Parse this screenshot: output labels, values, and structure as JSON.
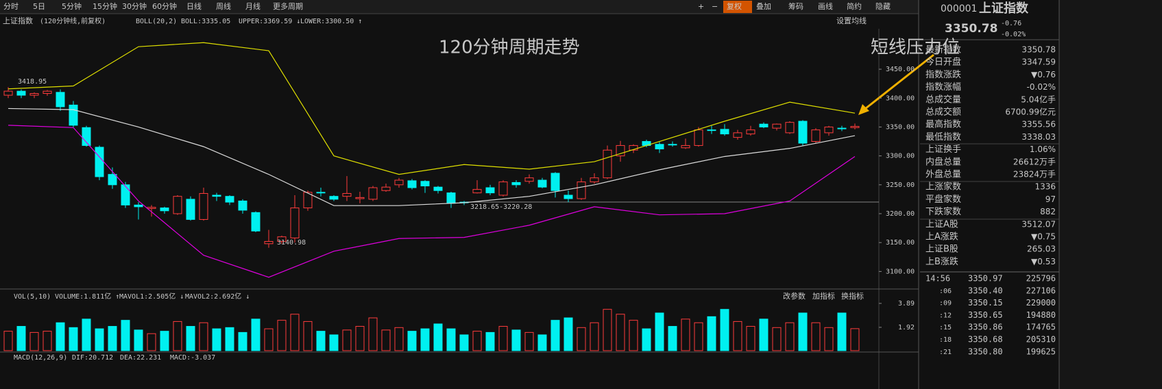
{
  "toolbar": {
    "periods": [
      "分时",
      "5日",
      "5分钟",
      "15分钟",
      "30分钟",
      "60分钟",
      "日线",
      "周线",
      "月线",
      "更多周期"
    ],
    "tools": [
      "+",
      "−",
      "复权",
      "叠加",
      "筹码",
      "画线",
      "简约",
      "隐藏"
    ]
  },
  "chart": {
    "name": "上证指数",
    "period": "(120分钟线,前复权)",
    "indicator": "BOLL(20,2)",
    "boll": "BOLL:3335.05",
    "upper": "UPPER:3369.59 ↓",
    "lower": "LOWER:3300.50 ↑",
    "settings": "设置均线",
    "title": "120分钟周期走势",
    "note": "短线压力位",
    "high_label": "3418.95",
    "low_label": "3140.98",
    "range_label": "3218.65-3220.28",
    "up_color": "#ff3c3c",
    "down_color": "#00f0f0",
    "ylim": [
      3072,
      3520
    ],
    "yticks": [
      {
        "value": 3450,
        "label": "3450.00"
      },
      {
        "value": 3400,
        "label": "3400.00"
      },
      {
        "value": 3350,
        "label": "3350.00"
      },
      {
        "value": 3300,
        "label": "3300.00"
      },
      {
        "value": 3250,
        "label": "3250.00"
      },
      {
        "value": 3200,
        "label": "3200.00"
      },
      {
        "value": 3150,
        "label": "3150.00"
      },
      {
        "value": 3100,
        "label": "3100.00"
      }
    ],
    "candles": [
      [
        3405,
        3419,
        3400,
        3412
      ],
      [
        3412,
        3415,
        3400,
        3405
      ],
      [
        3405,
        3410,
        3400,
        3408
      ],
      [
        3408,
        3414,
        3404,
        3412
      ],
      [
        3410,
        3415,
        3378,
        3385
      ],
      [
        3388,
        3395,
        3350,
        3353
      ],
      [
        3349,
        3352,
        3316,
        3318
      ],
      [
        3315,
        3318,
        3258,
        3264
      ],
      [
        3268,
        3280,
        3243,
        3250
      ],
      [
        3250,
        3255,
        3210,
        3215
      ],
      [
        3215,
        3220,
        3190,
        3212
      ],
      [
        3209,
        3215,
        3195,
        3211
      ],
      [
        3210,
        3212,
        3200,
        3205
      ],
      [
        3200,
        3232,
        3198,
        3230
      ],
      [
        3225,
        3230,
        3188,
        3190
      ],
      [
        3190,
        3245,
        3188,
        3235
      ],
      [
        3232,
        3236,
        3222,
        3230
      ],
      [
        3230,
        3232,
        3215,
        3220
      ],
      [
        3222,
        3225,
        3200,
        3206
      ],
      [
        3202,
        3204,
        3168,
        3170
      ],
      [
        3148,
        3172,
        3141,
        3152
      ],
      [
        3152,
        3162,
        3148,
        3160
      ],
      [
        3158,
        3232,
        3150,
        3210
      ],
      [
        3210,
        3240,
        3205,
        3237
      ],
      [
        3237,
        3245,
        3230,
        3236
      ],
      [
        3230,
        3232,
        3222,
        3225
      ],
      [
        3230,
        3265,
        3222,
        3235
      ],
      [
        3226,
        3238,
        3218,
        3228
      ],
      [
        3225,
        3248,
        3222,
        3245
      ],
      [
        3240,
        3252,
        3238,
        3246
      ],
      [
        3250,
        3262,
        3245,
        3258
      ],
      [
        3257,
        3260,
        3242,
        3245
      ],
      [
        3256,
        3258,
        3236,
        3248
      ],
      [
        3246,
        3248,
        3235,
        3240
      ],
      [
        3236,
        3238,
        3210,
        3218
      ],
      [
        3220,
        3222,
        3215,
        3219
      ],
      [
        3236,
        3258,
        3235,
        3242
      ],
      [
        3245,
        3250,
        3232,
        3236
      ],
      [
        3232,
        3258,
        3230,
        3255
      ],
      [
        3254,
        3258,
        3245,
        3250
      ],
      [
        3256,
        3268,
        3252,
        3262
      ],
      [
        3258,
        3262,
        3244,
        3246
      ],
      [
        3270,
        3272,
        3228,
        3240
      ],
      [
        3232,
        3240,
        3220,
        3226
      ],
      [
        3226,
        3262,
        3224,
        3255
      ],
      [
        3255,
        3270,
        3252,
        3262
      ],
      [
        3262,
        3318,
        3260,
        3310
      ],
      [
        3300,
        3326,
        3290,
        3318
      ],
      [
        3310,
        3320,
        3305,
        3318
      ],
      [
        3325,
        3328,
        3315,
        3318
      ],
      [
        3320,
        3324,
        3305,
        3312
      ],
      [
        3320,
        3325,
        3316,
        3319
      ],
      [
        3314,
        3330,
        3312,
        3318
      ],
      [
        3318,
        3350,
        3316,
        3345
      ],
      [
        3345,
        3352,
        3338,
        3344
      ],
      [
        3346,
        3355,
        3335,
        3338
      ],
      [
        3332,
        3345,
        3328,
        3340
      ],
      [
        3338,
        3352,
        3335,
        3345
      ],
      [
        3355,
        3358,
        3348,
        3350
      ],
      [
        3348,
        3356,
        3344,
        3355
      ],
      [
        3340,
        3360,
        3338,
        3358
      ],
      [
        3360,
        3362,
        3318,
        3322
      ],
      [
        3325,
        3348,
        3322,
        3345
      ],
      [
        3340,
        3352,
        3335,
        3350
      ],
      [
        3348,
        3352,
        3343,
        3347
      ],
      [
        3349,
        3356,
        3346,
        3351
      ]
    ],
    "band_x": [
      0,
      5,
      10,
      15,
      20,
      25,
      30,
      35,
      40,
      45,
      50,
      55,
      60,
      65
    ],
    "bands": [
      {
        "color": "#e0e000",
        "values": [
          3416,
          3421,
          3489,
          3496,
          3482,
          3300,
          3268,
          3285,
          3277,
          3290,
          3325,
          3360,
          3393,
          3374
        ]
      },
      {
        "color": "#dddddd",
        "values": [
          3382,
          3380,
          3350,
          3316,
          3268,
          3214,
          3214,
          3219,
          3230,
          3250,
          3276,
          3299,
          3313,
          3335
        ]
      },
      {
        "color": "#e000e0",
        "values": [
          3353,
          3349,
          3222,
          3128,
          3090,
          3135,
          3157,
          3159,
          3180,
          3212,
          3198,
          3200,
          3222,
          3299
        ]
      }
    ]
  },
  "volume": {
    "label": "VOL(5,10)",
    "volume": "VOLUME:1.811亿 ↑",
    "mavol1": "MAVOL1:2.505亿 ↓",
    "mavol2": "MAVOL2:2.692亿 ↓",
    "buttons": [
      "改参数",
      "加指标",
      "换指标"
    ],
    "ylim": [
      0,
      3.89
    ],
    "yticks": [
      3.89,
      1.92
    ],
    "values": [
      1.6,
      2.0,
      1.5,
      1.6,
      2.3,
      1.9,
      2.6,
      1.8,
      2.0,
      2.5,
      1.7,
      1.4,
      1.6,
      2.4,
      2.0,
      2.3,
      1.8,
      1.9,
      1.5,
      2.6,
      1.8,
      2.5,
      3.0,
      2.4,
      1.6,
      1.3,
      1.7,
      2.0,
      2.7,
      1.7,
      1.9,
      1.6,
      1.8,
      2.2,
      1.8,
      1.3,
      1.6,
      1.5,
      2.0,
      1.7,
      1.5,
      1.3,
      2.5,
      2.7,
      1.9,
      2.3,
      3.4,
      3.0,
      2.5,
      1.8,
      3.1,
      2.0,
      2.6,
      2.3,
      2.8,
      3.4,
      2.4,
      2.0,
      2.6,
      1.9,
      2.3,
      3.1,
      2.3,
      1.9,
      3.1,
      1.811
    ]
  },
  "macd": {
    "label": "MACD(12,26,9)",
    "dif": "DIF:20.712",
    "dea": "DEA:22.231",
    "macd": "MACD:-3.037"
  },
  "quote": {
    "code": "000001",
    "name": "上证指数",
    "price": "3350.78",
    "change": "-0.76",
    "pct": "-0.02%",
    "rows": [
      [
        "最新指数",
        "3350.78",
        "#2ee62e"
      ],
      [
        "今日开盘",
        "3347.59",
        "#2ee62e"
      ],
      [
        "指数涨跌",
        "▼0.76",
        "#2ee62e"
      ],
      [
        "指数涨幅",
        "-0.02%",
        "#2ee62e"
      ],
      [
        "总成交量",
        "5.04亿手",
        "#e8e8e8"
      ],
      [
        "总成交额",
        "6700.99亿元",
        "#ffe000"
      ],
      [
        "最高指数",
        "3355.56",
        "#ff3c3c"
      ],
      [
        "最低指数",
        "3338.03",
        "#2ee62e"
      ],
      [
        "上证换手",
        "1.06%",
        "#e8e8e8"
      ],
      [
        "内盘总量",
        "26612万手",
        "#2ee62e"
      ],
      [
        "外盘总量",
        "23824万手",
        "#ff3c3c"
      ],
      [
        "上涨家数",
        "1336",
        "#ff3c3c"
      ],
      [
        "平盘家数",
        "97",
        "#e8e8e8"
      ],
      [
        "下跌家数",
        "882",
        "#2ee62e"
      ],
      [
        "上证A股",
        "3512.07",
        "#2ee62e"
      ],
      [
        "上A涨跌",
        "▼0.75",
        "#2ee62e"
      ],
      [
        "上证B股",
        "265.03",
        "#2ee62e"
      ],
      [
        "上B涨跌",
        "▼0.53",
        "#2ee62e"
      ]
    ],
    "ticks": [
      [
        "14:56",
        "3350.97",
        "225796"
      ],
      [
        ":06",
        "3350.40",
        "227106"
      ],
      [
        ":09",
        "3350.15",
        "229000"
      ],
      [
        ":12",
        "3350.65",
        "194880"
      ],
      [
        ":15",
        "3350.86",
        "174765"
      ],
      [
        ":18",
        "3350.68",
        "205310"
      ],
      [
        ":21",
        "3350.80",
        "199625"
      ]
    ]
  }
}
